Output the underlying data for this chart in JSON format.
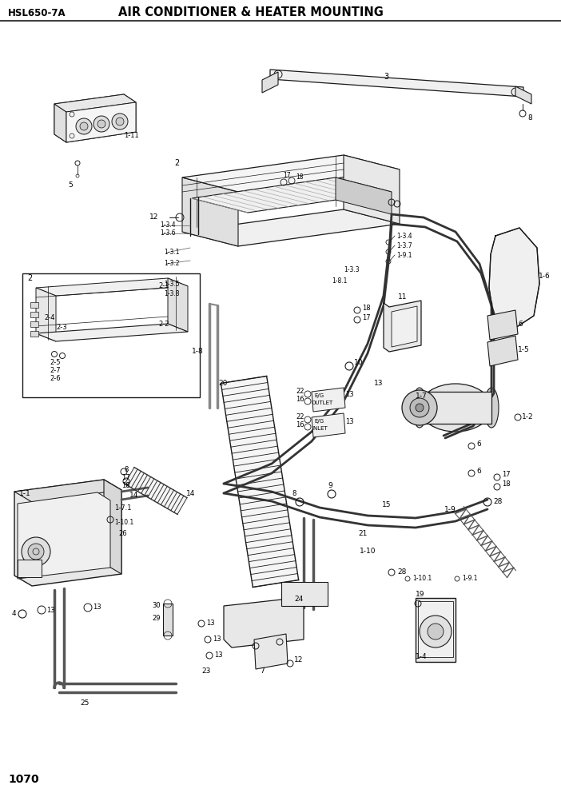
{
  "title": "AIR CONDITIONER & HEATER MOUNTING",
  "model": "HSL650-7A",
  "page": "1070",
  "bg_color": "#ffffff",
  "lc": "#1a1a1a",
  "fig_width": 7.02,
  "fig_height": 9.92
}
